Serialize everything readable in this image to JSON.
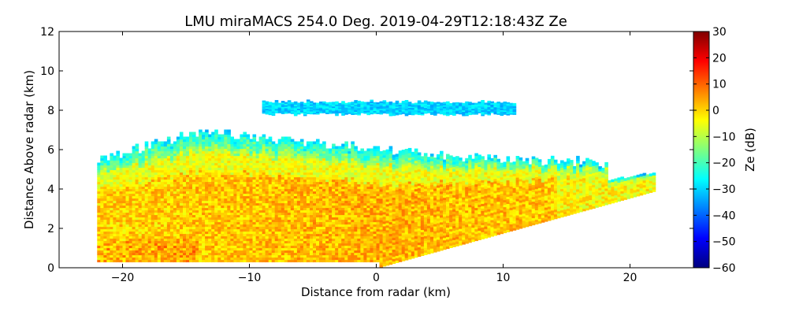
{
  "chart_data": {
    "type": "heatmap",
    "title": "LMU miraMACS 254.0 Deg. 2019-04-29T12:18:43Z  Ze",
    "xlabel": "Distance from radar (km)",
    "ylabel": "Distance Above radar  (km)",
    "xlim": [
      -25,
      25
    ],
    "ylim": [
      0,
      12
    ],
    "xticks": [
      -20,
      -10,
      0,
      10,
      20
    ],
    "xtick_labels": [
      "−20",
      "−10",
      "0",
      "10",
      "20"
    ],
    "yticks": [
      0,
      2,
      4,
      6,
      8,
      10,
      12
    ],
    "ytick_labels": [
      "0",
      "2",
      "4",
      "6",
      "8",
      "10",
      "12"
    ],
    "grid": false,
    "colormap": "jet",
    "colorbar": {
      "label": "Ze (dB)",
      "range": [
        -60,
        30
      ],
      "ticks": [
        30,
        20,
        10,
        0,
        -10,
        -20,
        -30,
        -40,
        -50,
        -60
      ],
      "tick_labels": [
        "30",
        "20",
        "10",
        "0",
        "−10",
        "−20",
        "−30",
        "−40",
        "−50",
        "−60"
      ]
    },
    "regions": [
      {
        "x_range": [
          -22,
          22
        ],
        "base_km": 0,
        "top_km": [
          5.5,
          6.8,
          6.4,
          5.6,
          5.2
        ],
        "ze_core_db": 3,
        "ze_edge_db": -25
      },
      {
        "x_range": [
          -9,
          11
        ],
        "base_km": 7.8,
        "top_km": 8.4,
        "ze_db": -30
      }
    ],
    "colors": {
      "axis": "#000000",
      "background": "#ffffff"
    }
  }
}
